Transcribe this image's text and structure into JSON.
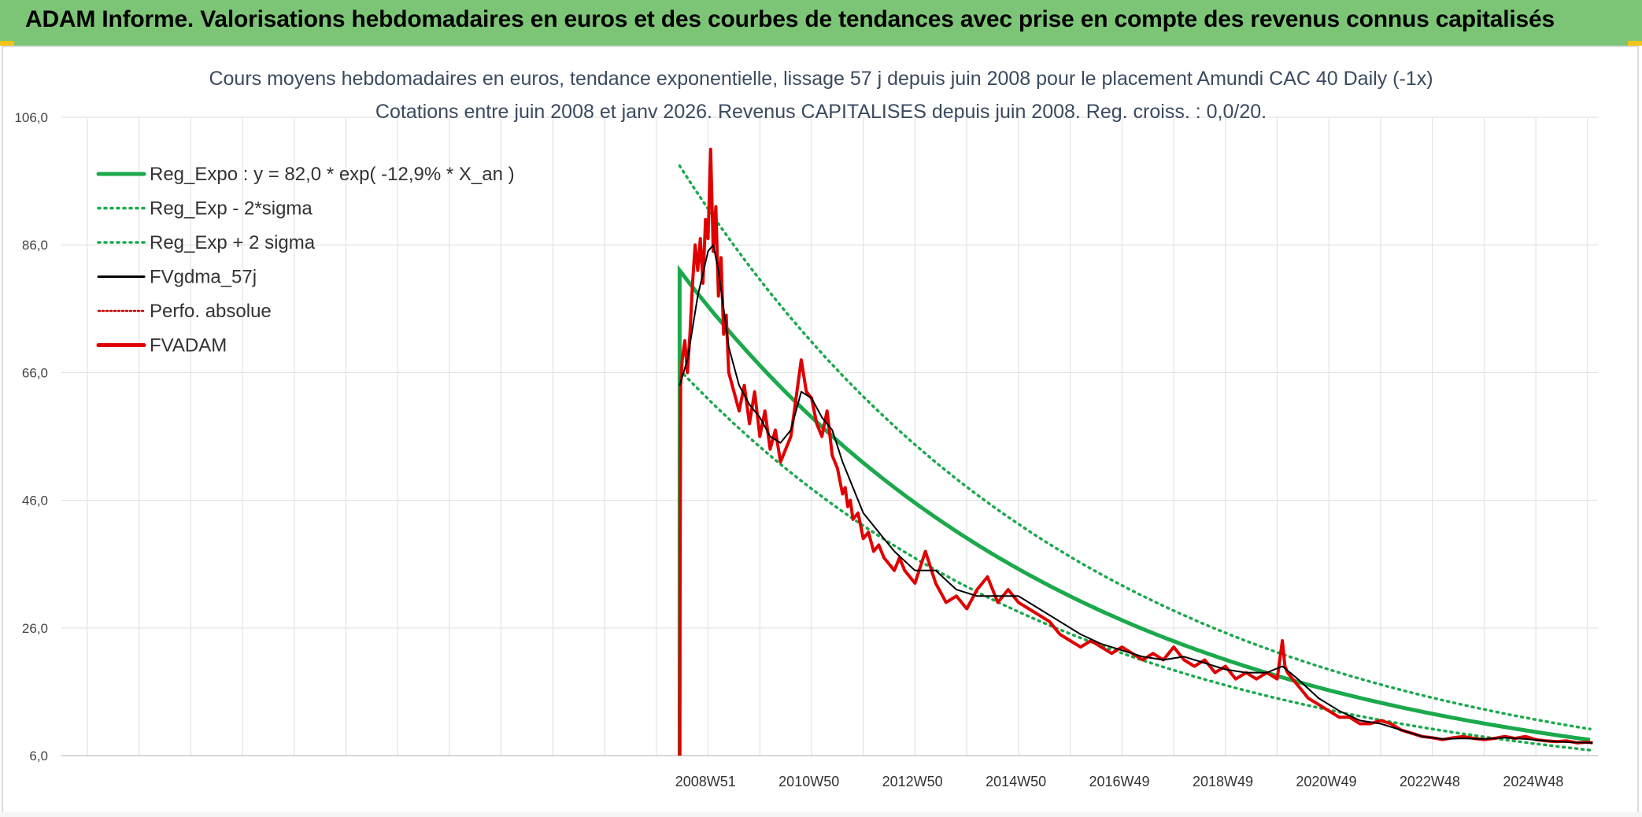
{
  "banner": {
    "title": "ADAM Informe. Valorisations hebdomadaires en euros et des courbes de tendances avec prise en compte des revenus connus capitalisés",
    "color": "#7cc576"
  },
  "chart_data": {
    "type": "line",
    "title_line1": "Cours moyens hebdomadaires en euros, tendance exponentielle, lissage 57 j depuis juin 2008 pour le placement Amundi CAC 40 Daily (-1x)",
    "title_line2": "Cotations entre juin 2008 et janv 2026. Revenus CAPITALISES depuis juin 2008. Reg. croiss. : 0,0/20.",
    "y_ticks": [
      "106,0",
      "86,0",
      "66,0",
      "46,0",
      "26,0",
      "6,0"
    ],
    "ylim": [
      6,
      106
    ],
    "x_ticks": [
      "2008W51",
      "2010W50",
      "2012W50",
      "2014W50",
      "2016W49",
      "2018W49",
      "2020W49",
      "2022W48",
      "2024W48"
    ],
    "x_tick_years": [
      2008.95,
      2010.95,
      2012.95,
      2014.95,
      2016.95,
      2018.95,
      2020.95,
      2022.95,
      2024.95
    ],
    "xlim": [
      1996.5,
      2026.2
    ],
    "grid": true,
    "legend_position": "top-left",
    "legend": [
      {
        "label": "Reg_Expo : y = 82,0 * exp( -12,9% *  X_an )",
        "color": "#1ba94c",
        "style": "solid-thick"
      },
      {
        "label": "Reg_Exp - 2*sigma",
        "color": "#1ba94c",
        "style": "dotted"
      },
      {
        "label": "Reg_Exp + 2 sigma",
        "color": "#1ba94c",
        "style": "dotted"
      },
      {
        "label": "FVgdma_57j",
        "color": "#000000",
        "style": "solid"
      },
      {
        "label": "Perfo. absolue",
        "color": "#c00000",
        "style": "dotted-thin"
      },
      {
        "label": "FVADAM",
        "color": "#e00000",
        "style": "solid-thick"
      }
    ],
    "regression": {
      "start": 2008.45,
      "end": 2026.1,
      "a": 82.0,
      "rate": -0.129,
      "upper_factor": 1.2,
      "lower_factor": 0.81
    },
    "fvadam": {
      "x": [
        2008.45,
        2008.47,
        2008.5,
        2008.55,
        2008.6,
        2008.65,
        2008.7,
        2008.75,
        2008.8,
        2008.85,
        2008.9,
        2008.95,
        2009.0,
        2009.05,
        2009.1,
        2009.15,
        2009.2,
        2009.25,
        2009.3,
        2009.35,
        2009.4,
        2009.5,
        2009.6,
        2009.7,
        2009.8,
        2009.9,
        2010.0,
        2010.1,
        2010.2,
        2010.3,
        2010.4,
        2010.5,
        2010.6,
        2010.7,
        2010.8,
        2010.9,
        2011.0,
        2011.1,
        2011.2,
        2011.3,
        2011.4,
        2011.5,
        2011.55,
        2011.6,
        2011.65,
        2011.7,
        2011.75,
        2011.8,
        2011.9,
        2012.0,
        2012.1,
        2012.2,
        2012.3,
        2012.4,
        2012.5,
        2012.6,
        2012.7,
        2012.8,
        2013.0,
        2013.2,
        2013.4,
        2013.6,
        2013.8,
        2014.0,
        2014.2,
        2014.4,
        2014.6,
        2014.8,
        2015.0,
        2015.2,
        2015.4,
        2015.6,
        2015.8,
        2016.0,
        2016.2,
        2016.4,
        2016.6,
        2016.8,
        2017.0,
        2017.2,
        2017.4,
        2017.6,
        2017.8,
        2018.0,
        2018.2,
        2018.4,
        2018.6,
        2018.8,
        2019.0,
        2019.2,
        2019.4,
        2019.6,
        2019.8,
        2020.0,
        2020.1,
        2020.15,
        2020.2,
        2020.3,
        2020.4,
        2020.5,
        2020.6,
        2020.8,
        2021.0,
        2021.2,
        2021.4,
        2021.6,
        2021.8,
        2022.0,
        2022.2,
        2022.4,
        2022.6,
        2022.8,
        2023.0,
        2023.2,
        2023.4,
        2023.6,
        2023.8,
        2024.0,
        2024.2,
        2024.4,
        2024.6,
        2024.8,
        2025.0,
        2025.2,
        2025.4,
        2025.6,
        2025.8,
        2026.0,
        2026.1
      ],
      "y": [
        6,
        64,
        68,
        71,
        66,
        72,
        80,
        86,
        82,
        87,
        80,
        90,
        87,
        101,
        85,
        92,
        78,
        84,
        72,
        75,
        66,
        63,
        60,
        64,
        58,
        63,
        56,
        60,
        54,
        57,
        52,
        54,
        56,
        62,
        68,
        63,
        62,
        58,
        56,
        60,
        53,
        51,
        49,
        47,
        48,
        45,
        46,
        43,
        44,
        40,
        41,
        38,
        39,
        37,
        36,
        35,
        37,
        35,
        33,
        38,
        33,
        30,
        31,
        29,
        32,
        34,
        30,
        32,
        30,
        29,
        28,
        27,
        25,
        24,
        23,
        24,
        23,
        22,
        23,
        22,
        21,
        22,
        21,
        23,
        21,
        20,
        21,
        19,
        20,
        18,
        19,
        18,
        19,
        18,
        24,
        20,
        19,
        18,
        17,
        16,
        15,
        14,
        13,
        12,
        12,
        11,
        11,
        11.5,
        11,
        10,
        9.5,
        9,
        8.8,
        8.5,
        8.8,
        9,
        8.7,
        8.5,
        8.7,
        9,
        8.7,
        9,
        8.5,
        8.3,
        8.2,
        8.3,
        8,
        8.1,
        8
      ]
    },
    "fvgdma": {
      "x": [
        2008.45,
        2008.6,
        2008.8,
        2009.0,
        2009.1,
        2009.2,
        2009.3,
        2009.4,
        2009.6,
        2009.8,
        2010.0,
        2010.2,
        2010.4,
        2010.6,
        2010.8,
        2011.0,
        2011.2,
        2011.4,
        2011.6,
        2011.8,
        2012.0,
        2012.3,
        2012.6,
        2013.0,
        2013.4,
        2013.8,
        2014.2,
        2014.6,
        2015.0,
        2015.4,
        2015.8,
        2016.2,
        2016.6,
        2017.0,
        2017.4,
        2017.8,
        2018.2,
        2018.6,
        2019.0,
        2019.4,
        2019.8,
        2020.1,
        2020.4,
        2020.8,
        2021.2,
        2021.6,
        2022.0,
        2022.4,
        2022.8,
        2023.2,
        2023.6,
        2024.0,
        2024.4,
        2024.8,
        2025.2,
        2025.6,
        2026.1
      ],
      "y": [
        64,
        68,
        78,
        85,
        86,
        82,
        76,
        70,
        64,
        61,
        59,
        56,
        55,
        57,
        63,
        62,
        59,
        57,
        52,
        48,
        44,
        41,
        38,
        35,
        35,
        32,
        31,
        31,
        31,
        29,
        27,
        25,
        23.5,
        22.5,
        21.5,
        21,
        21.5,
        20.5,
        19.5,
        19,
        19,
        20,
        18,
        15,
        13,
        11.5,
        11,
        10,
        9,
        8.6,
        8.7,
        8.6,
        8.8,
        8.6,
        8.3,
        8.1,
        8
      ]
    }
  }
}
